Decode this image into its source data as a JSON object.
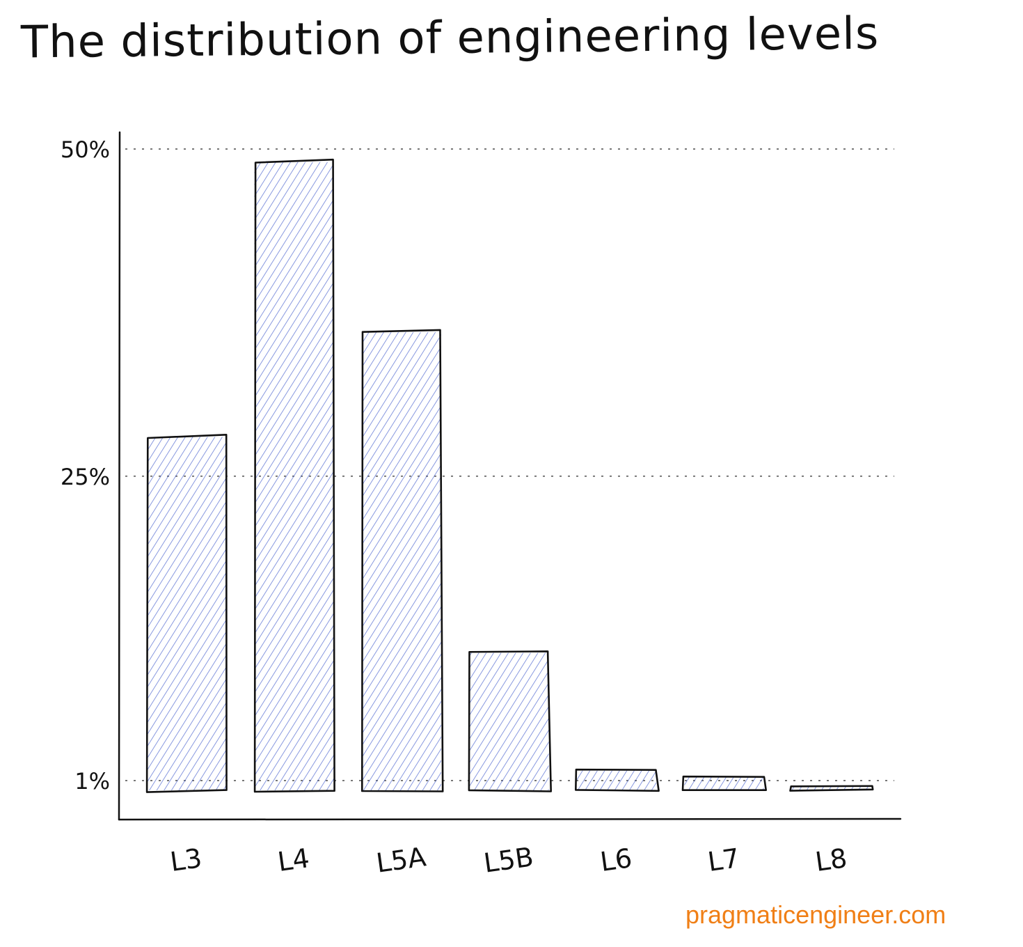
{
  "title": "The distribution of engineering levels",
  "watermark": "pragmaticengineer.com",
  "colors": {
    "bar_stroke": "#111111",
    "hatch": "#5068d0",
    "grid": "#777777",
    "watermark": "#f07f16"
  },
  "chart_data": {
    "type": "bar",
    "title": "The distribution of engineering levels",
    "categories": [
      "L3",
      "L4",
      "L5A",
      "L5B",
      "L6",
      "L7",
      "L8"
    ],
    "values": [
      28,
      49,
      36,
      11.5,
      2.5,
      2,
      1.3
    ],
    "y_ticks": [
      {
        "value": 50,
        "label": "50%"
      },
      {
        "value": 25,
        "label": "25%"
      },
      {
        "value": 1,
        "label": "1%"
      }
    ],
    "ylim": [
      0,
      51
    ],
    "grid": "dotted horizontal at tick values",
    "legend": "none",
    "xlabel": "",
    "ylabel": ""
  }
}
